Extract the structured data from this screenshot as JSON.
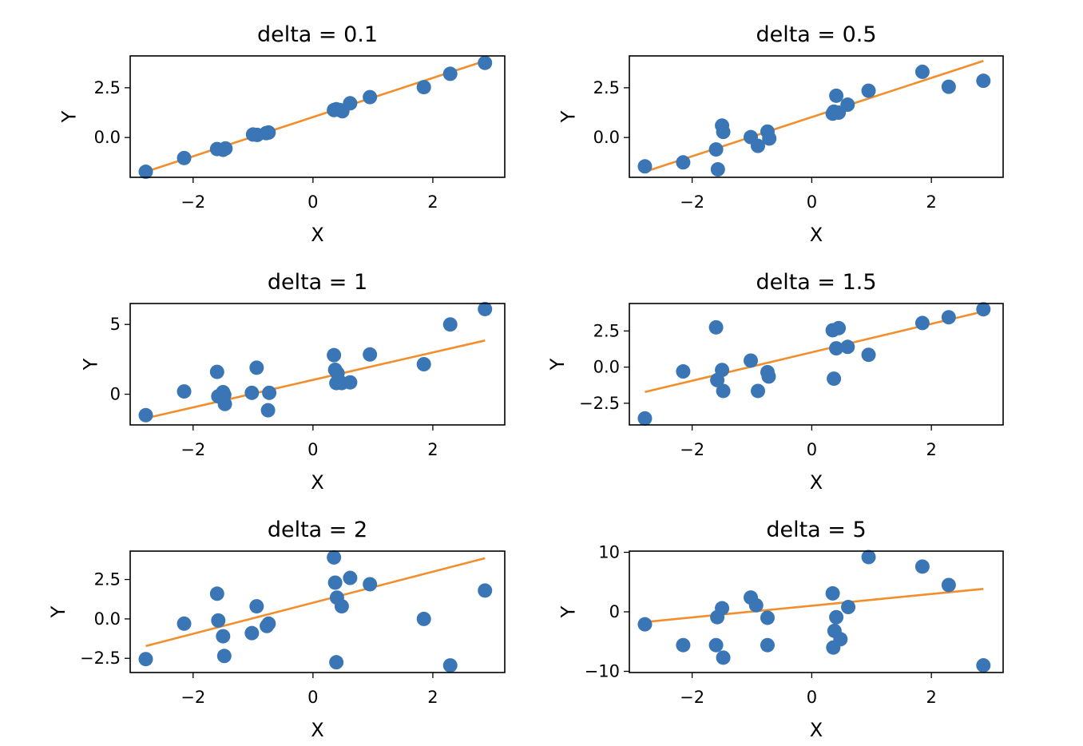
{
  "chart_data": [
    {
      "type": "scatter",
      "title": "delta = 0.1",
      "xlabel": "X",
      "ylabel": "Y",
      "xlim": [
        -3.05,
        3.2
      ],
      "ylim": [
        -2.0,
        4.1
      ],
      "xticks": [
        -2,
        0,
        2
      ],
      "xtick_labels": [
        "−2",
        "0",
        "2"
      ],
      "yticks": [
        0.0,
        2.5
      ],
      "ytick_labels": [
        "0.0",
        "2.5"
      ],
      "points": {
        "x": [
          -2.79,
          -2.15,
          -1.6,
          -1.5,
          -1.46,
          -1.0,
          -0.93,
          -0.78,
          -0.74,
          0.35,
          0.39,
          0.45,
          0.49,
          0.62,
          0.95,
          1.85,
          2.29,
          2.87
        ],
        "y": [
          -1.72,
          -1.03,
          -0.58,
          -0.62,
          -0.55,
          0.15,
          0.13,
          0.22,
          0.25,
          1.38,
          1.42,
          1.38,
          1.32,
          1.72,
          2.03,
          2.53,
          3.2,
          3.75
        ]
      },
      "fit": {
        "x": [
          -2.79,
          2.87
        ],
        "y": [
          -1.72,
          3.85
        ]
      }
    },
    {
      "type": "scatter",
      "title": "delta = 0.5",
      "xlabel": "X",
      "ylabel": "Y",
      "xlim": [
        -3.05,
        3.2
      ],
      "ylim": [
        -2.0,
        4.1
      ],
      "xticks": [
        -2,
        0,
        2
      ],
      "xtick_labels": [
        "−2",
        "0",
        "2"
      ],
      "yticks": [
        0.0,
        2.5
      ],
      "ytick_labels": [
        "0.0",
        "2.5"
      ],
      "points": {
        "x": [
          -2.79,
          -2.15,
          -1.6,
          -1.57,
          -1.5,
          -1.48,
          -1.02,
          -0.9,
          -0.74,
          -0.71,
          0.35,
          0.37,
          0.41,
          0.45,
          0.6,
          0.95,
          1.85,
          2.29,
          2.87
        ],
        "y": [
          -1.45,
          -1.25,
          -0.6,
          -1.6,
          0.6,
          0.28,
          0.02,
          -0.42,
          0.3,
          -0.05,
          1.2,
          1.3,
          2.1,
          1.25,
          1.65,
          2.35,
          3.3,
          2.55,
          2.85
        ]
      },
      "fit": {
        "x": [
          -2.79,
          2.87
        ],
        "y": [
          -1.72,
          3.85
        ]
      }
    },
    {
      "type": "scatter",
      "title": "delta = 1",
      "xlabel": "X",
      "ylabel": "Y",
      "xlim": [
        -3.05,
        3.2
      ],
      "ylim": [
        -2.2,
        6.5
      ],
      "xticks": [
        -2,
        0,
        2
      ],
      "xtick_labels": [
        "−2",
        "0",
        "2"
      ],
      "yticks": [
        0,
        5
      ],
      "ytick_labels": [
        "0",
        "5"
      ],
      "points": {
        "x": [
          -2.79,
          -2.15,
          -1.6,
          -1.58,
          -1.5,
          -1.48,
          -1.47,
          -1.02,
          -0.94,
          -0.75,
          -0.73,
          0.35,
          0.37,
          0.39,
          0.41,
          0.48,
          0.62,
          0.95,
          1.85,
          2.29,
          2.87
        ],
        "y": [
          -1.5,
          0.2,
          1.6,
          -0.15,
          0.15,
          -0.05,
          -0.7,
          0.1,
          1.9,
          -1.15,
          0.1,
          2.8,
          1.75,
          0.8,
          1.5,
          0.8,
          0.85,
          2.85,
          2.15,
          5.0,
          6.1
        ]
      },
      "fit": {
        "x": [
          -2.79,
          2.87
        ],
        "y": [
          -1.72,
          3.85
        ]
      }
    },
    {
      "type": "scatter",
      "title": "delta = 1.5",
      "xlabel": "X",
      "ylabel": "Y",
      "xlim": [
        -3.05,
        3.2
      ],
      "ylim": [
        -4.0,
        4.4
      ],
      "xticks": [
        -2,
        0,
        2
      ],
      "xtick_labels": [
        "−2",
        "0",
        "2"
      ],
      "yticks": [
        -2.5,
        0.0,
        2.5
      ],
      "ytick_labels": [
        "−2.5",
        "0.0",
        "2.5"
      ],
      "points": {
        "x": [
          -2.79,
          -2.15,
          -1.6,
          -1.58,
          -1.5,
          -1.48,
          -1.02,
          -0.9,
          -0.74,
          -0.72,
          0.35,
          0.37,
          0.41,
          0.45,
          0.6,
          0.95,
          1.85,
          2.29,
          2.87
        ],
        "y": [
          -3.55,
          -0.3,
          2.75,
          -0.9,
          -0.2,
          -1.65,
          0.45,
          -1.65,
          -0.35,
          -0.65,
          2.55,
          -0.8,
          1.3,
          2.7,
          1.4,
          0.85,
          3.05,
          3.45,
          4.0
        ]
      },
      "fit": {
        "x": [
          -2.79,
          2.87
        ],
        "y": [
          -1.72,
          3.85
        ]
      }
    },
    {
      "type": "scatter",
      "title": "delta = 2",
      "xlabel": "X",
      "ylabel": "Y",
      "xlim": [
        -3.05,
        3.2
      ],
      "ylim": [
        -3.4,
        4.3
      ],
      "xticks": [
        -2,
        0,
        2
      ],
      "xtick_labels": [
        "−2",
        "0",
        "2"
      ],
      "yticks": [
        -2.5,
        0.0,
        2.5
      ],
      "ytick_labels": [
        "−2.5",
        "0.0",
        "2.5"
      ],
      "points": {
        "x": [
          -2.79,
          -2.15,
          -1.6,
          -1.58,
          -1.5,
          -1.48,
          -1.02,
          -0.94,
          -0.77,
          -0.74,
          0.35,
          0.37,
          0.39,
          0.4,
          0.48,
          0.62,
          0.95,
          1.85,
          2.29,
          2.87
        ],
        "y": [
          -2.55,
          -0.3,
          1.6,
          -0.1,
          -1.1,
          -2.35,
          -0.9,
          0.8,
          -0.45,
          -0.3,
          3.9,
          2.3,
          -2.75,
          1.35,
          0.8,
          2.6,
          2.2,
          0.0,
          -2.95,
          1.8
        ]
      },
      "fit": {
        "x": [
          -2.79,
          2.87
        ],
        "y": [
          -1.72,
          3.85
        ]
      }
    },
    {
      "type": "scatter",
      "title": "delta = 5",
      "xlabel": "X",
      "ylabel": "Y",
      "xlim": [
        -3.05,
        3.2
      ],
      "ylim": [
        -10.2,
        10.2
      ],
      "xticks": [
        -2,
        0,
        2
      ],
      "xtick_labels": [
        "−2",
        "0",
        "2"
      ],
      "yticks": [
        -10,
        0,
        10
      ],
      "ytick_labels": [
        "−10",
        "0",
        "10"
      ],
      "points": {
        "x": [
          -2.79,
          -2.15,
          -1.6,
          -1.58,
          -1.5,
          -1.48,
          -1.02,
          -0.93,
          -0.74,
          -0.74,
          0.35,
          0.36,
          0.38,
          0.41,
          0.48,
          0.61,
          0.95,
          1.85,
          2.29,
          2.87
        ],
        "y": [
          -2.1,
          -5.6,
          -5.6,
          -0.9,
          0.6,
          -7.7,
          2.4,
          1.1,
          -1.0,
          -5.6,
          3.1,
          -6.0,
          -3.2,
          -0.9,
          -4.6,
          0.8,
          9.2,
          7.6,
          4.5,
          -9.0
        ]
      },
      "fit": {
        "x": [
          -2.79,
          2.87
        ],
        "y": [
          -1.72,
          3.85
        ]
      }
    }
  ]
}
